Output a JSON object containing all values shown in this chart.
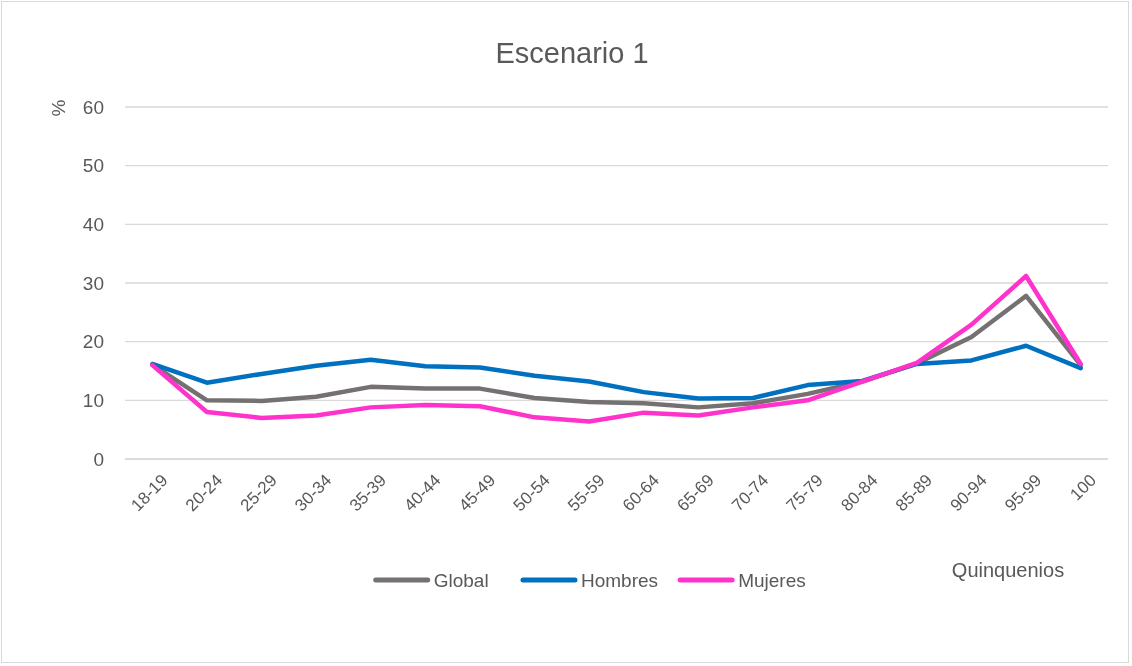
{
  "chart_data": {
    "type": "line",
    "title": "Escenario 1",
    "xlabel": "Quinquenios",
    "ylabel": "%",
    "categories": [
      "18-19",
      "20-24",
      "25-29",
      "30-34",
      "35-39",
      "40-44",
      "45-49",
      "50-54",
      "55-59",
      "60-64",
      "65-69",
      "70-74",
      "75-79",
      "80-84",
      "85-89",
      "90-94",
      "95-99",
      "100"
    ],
    "series": [
      {
        "name": "Global",
        "color": "#767171",
        "values": [
          16.1,
          10.0,
          9.9,
          10.6,
          12.3,
          12.0,
          12.0,
          10.4,
          9.7,
          9.5,
          8.8,
          9.5,
          11.1,
          13.2,
          16.3,
          20.8,
          27.8,
          16.0
        ]
      },
      {
        "name": "Hombres",
        "color": "#0070c0",
        "values": [
          16.2,
          13.0,
          14.5,
          15.9,
          16.9,
          15.8,
          15.6,
          14.2,
          13.2,
          11.4,
          10.3,
          10.4,
          12.6,
          13.3,
          16.2,
          16.8,
          19.3,
          15.5
        ]
      },
      {
        "name": "Mujeres",
        "color": "#ff33cc",
        "values": [
          16.0,
          8.0,
          7.0,
          7.4,
          8.8,
          9.2,
          9.0,
          7.1,
          6.4,
          7.9,
          7.4,
          8.8,
          10.0,
          13.2,
          16.4,
          22.9,
          31.2,
          16.2
        ]
      }
    ],
    "ylim": [
      0,
      60
    ],
    "yticks": [
      0,
      10,
      20,
      30,
      40,
      50,
      60
    ],
    "grid": "y",
    "legend": "bottom"
  }
}
